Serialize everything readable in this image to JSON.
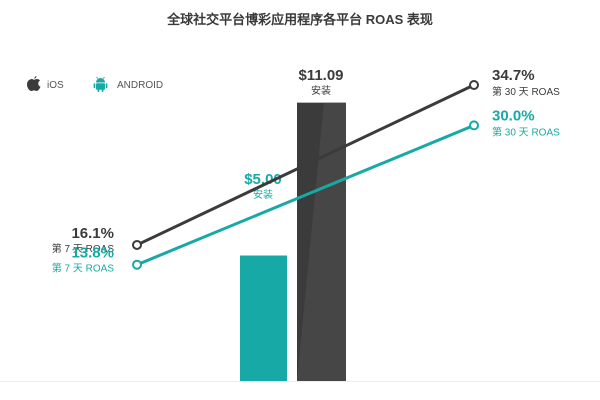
{
  "title": "全球社交平台博彩应用程序各平台 ROAS 表现",
  "legend": [
    {
      "label": "iOS",
      "icon": "apple-icon",
      "color": "#3b3b3b"
    },
    {
      "label": "ANDROID",
      "icon": "android-icon",
      "color": "#16a9a6"
    }
  ],
  "chart_data": {
    "type": "bar+line",
    "bars": [
      {
        "platform": "ANDROID",
        "value": 5.0,
        "value_label": "$5.00",
        "sub_label": "安装",
        "color": "#16a9a6"
      },
      {
        "platform": "iOS",
        "value": 11.09,
        "value_label": "$11.09",
        "sub_label": "安装",
        "color": "#3b3b3b"
      }
    ],
    "lines": [
      {
        "platform": "iOS",
        "color": "#3b3b3b",
        "points": [
          {
            "x": "第 7 天 ROAS",
            "y": 16.1,
            "value_label": "16.1%",
            "sub_label": "第 7 天 ROAS"
          },
          {
            "x": "第 30 天 ROAS",
            "y": 34.7,
            "value_label": "34.7%",
            "sub_label": "第 30 天 ROAS"
          }
        ]
      },
      {
        "platform": "ANDROID",
        "color": "#16a9a6",
        "points": [
          {
            "x": "第 7 天 ROAS",
            "y": 13.8,
            "value_label": "13.8%",
            "sub_label": "第 7 天 ROAS"
          },
          {
            "x": "第 30 天 ROAS",
            "y": 30.0,
            "value_label": "30.0%",
            "sub_label": "第 30 天 ROAS"
          }
        ]
      }
    ]
  }
}
